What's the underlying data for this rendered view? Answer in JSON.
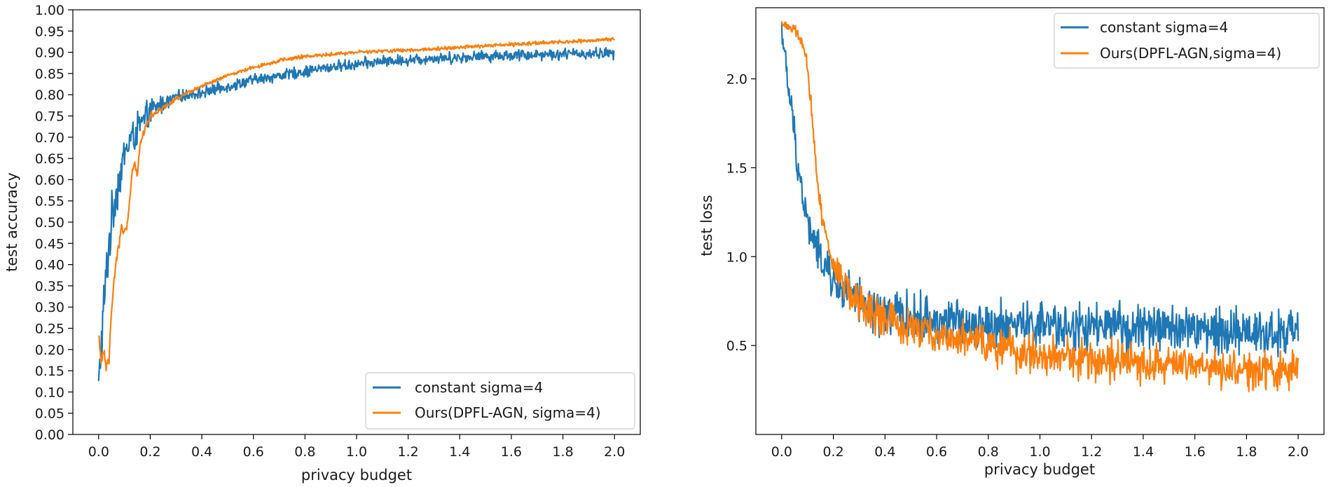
{
  "colors": {
    "blue": "#1f77b4",
    "orange": "#ff7f0e",
    "axis": "#000000",
    "legend_border": "#cccccc"
  },
  "chart_data": [
    {
      "type": "line",
      "xlabel": "privacy budget",
      "ylabel": "test accuracy",
      "xlim": [
        -0.1,
        2.1
      ],
      "ylim": [
        0.0,
        1.0
      ],
      "xticks": [
        0.0,
        0.2,
        0.4,
        0.6,
        0.8,
        1.0,
        1.2,
        1.4,
        1.6,
        1.8,
        2.0
      ],
      "xtick_labels": [
        "0.0",
        "0.2",
        "0.4",
        "0.6",
        "0.8",
        "1.0",
        "1.2",
        "1.4",
        "1.6",
        "1.8",
        "2.0"
      ],
      "yticks": [
        0.0,
        0.05,
        0.1,
        0.15,
        0.2,
        0.25,
        0.3,
        0.35,
        0.4,
        0.45,
        0.5,
        0.55,
        0.6,
        0.65,
        0.7,
        0.75,
        0.8,
        0.85,
        0.9,
        0.95,
        1.0
      ],
      "ytick_labels": [
        "0.00",
        "0.05",
        "0.10",
        "0.15",
        "0.20",
        "0.25",
        "0.30",
        "0.35",
        "0.40",
        "0.45",
        "0.50",
        "0.55",
        "0.60",
        "0.65",
        "0.70",
        "0.75",
        "0.80",
        "0.85",
        "0.90",
        "0.95",
        "1.00"
      ],
      "legend_position": "lower-right",
      "series": [
        {
          "name": "constant sigma=4",
          "color": "#1f77b4",
          "x": [
            0.0,
            0.02,
            0.04,
            0.06,
            0.08,
            0.1,
            0.12,
            0.15,
            0.18,
            0.2,
            0.25,
            0.3,
            0.4,
            0.5,
            0.6,
            0.7,
            0.8,
            0.9,
            1.0,
            1.1,
            1.2,
            1.3,
            1.4,
            1.5,
            1.6,
            1.7,
            1.8,
            1.9,
            2.0
          ],
          "y": [
            0.11,
            0.3,
            0.45,
            0.55,
            0.6,
            0.66,
            0.69,
            0.72,
            0.74,
            0.76,
            0.78,
            0.795,
            0.805,
            0.82,
            0.835,
            0.845,
            0.855,
            0.865,
            0.872,
            0.878,
            0.882,
            0.886,
            0.888,
            0.891,
            0.893,
            0.895,
            0.896,
            0.897,
            0.898
          ],
          "noise": 0.012,
          "noise_early": 0.06
        },
        {
          "name": "Ours(DPFL-AGN, sigma=4)",
          "color": "#ff7f0e",
          "x": [
            0.0,
            0.01,
            0.02,
            0.03,
            0.04,
            0.05,
            0.07,
            0.09,
            0.1,
            0.11,
            0.12,
            0.13,
            0.14,
            0.15,
            0.16,
            0.17,
            0.18,
            0.2,
            0.25,
            0.3,
            0.4,
            0.5,
            0.6,
            0.7,
            0.8,
            0.9,
            1.0,
            1.2,
            1.4,
            1.6,
            1.8,
            2.0
          ],
          "y": [
            0.23,
            0.17,
            0.2,
            0.16,
            0.17,
            0.3,
            0.42,
            0.49,
            0.47,
            0.49,
            0.55,
            0.62,
            0.64,
            0.61,
            0.68,
            0.7,
            0.72,
            0.75,
            0.77,
            0.79,
            0.82,
            0.845,
            0.865,
            0.88,
            0.89,
            0.895,
            0.9,
            0.905,
            0.912,
            0.918,
            0.924,
            0.93
          ],
          "noise": 0.004,
          "noise_early": 0.015
        }
      ],
      "legend": [
        "constant sigma=4",
        "Ours(DPFL-AGN, sigma=4)"
      ]
    },
    {
      "type": "line",
      "xlabel": "privacy budget",
      "ylabel": "test loss",
      "xlim": [
        -0.1,
        2.1
      ],
      "ylim": [
        0.0,
        2.4
      ],
      "xticks": [
        0.0,
        0.2,
        0.4,
        0.6,
        0.8,
        1.0,
        1.2,
        1.4,
        1.6,
        1.8,
        2.0
      ],
      "xtick_labels": [
        "0.0",
        "0.2",
        "0.4",
        "0.6",
        "0.8",
        "1.0",
        "1.2",
        "1.4",
        "1.6",
        "1.8",
        "2.0"
      ],
      "yticks": [
        0.5,
        1.0,
        1.5,
        2.0
      ],
      "ytick_labels": [
        "0.5",
        "1.0",
        "1.5",
        "2.0"
      ],
      "legend_position": "upper-right",
      "series": [
        {
          "name": "constant sigma=4",
          "color": "#1f77b4",
          "x": [
            0.0,
            0.02,
            0.04,
            0.06,
            0.08,
            0.1,
            0.12,
            0.15,
            0.2,
            0.25,
            0.3,
            0.4,
            0.5,
            0.6,
            0.8,
            1.0,
            1.2,
            1.4,
            1.6,
            1.8,
            2.0
          ],
          "y": [
            2.3,
            2.0,
            1.8,
            1.55,
            1.35,
            1.2,
            1.1,
            1.0,
            0.85,
            0.8,
            0.73,
            0.68,
            0.66,
            0.64,
            0.62,
            0.61,
            0.6,
            0.6,
            0.59,
            0.58,
            0.57
          ],
          "noise": 0.12,
          "noise_early": 0.08
        },
        {
          "name": "Ours(DPFL-AGN,sigma=4)",
          "color": "#ff7f0e",
          "x": [
            0.0,
            0.02,
            0.04,
            0.06,
            0.08,
            0.1,
            0.12,
            0.14,
            0.16,
            0.18,
            0.2,
            0.25,
            0.3,
            0.4,
            0.5,
            0.6,
            0.8,
            1.0,
            1.2,
            1.4,
            1.6,
            1.8,
            2.0
          ],
          "y": [
            2.31,
            2.3,
            2.28,
            2.25,
            2.2,
            2.05,
            1.75,
            1.4,
            1.2,
            1.05,
            0.95,
            0.82,
            0.73,
            0.65,
            0.6,
            0.56,
            0.5,
            0.45,
            0.42,
            0.4,
            0.38,
            0.36,
            0.35
          ],
          "noise": 0.1,
          "noise_early": 0.02
        }
      ],
      "legend": [
        "constant sigma=4",
        "Ours(DPFL-AGN,sigma=4)"
      ]
    }
  ]
}
